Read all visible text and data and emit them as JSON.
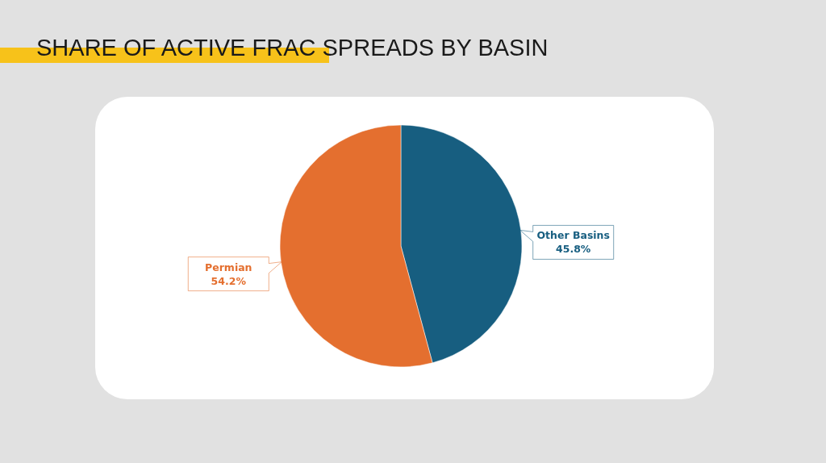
{
  "chart_data": {
    "type": "pie",
    "title": "SHARE OF ACTIVE FRAC SPREADS BY BASIN",
    "categories": [
      "Other Basins",
      "Permian"
    ],
    "values": [
      45.8,
      54.2
    ],
    "colors": [
      "#175e80",
      "#e46f2f"
    ],
    "value_labels": [
      "45.8%",
      "54.2%"
    ]
  }
}
